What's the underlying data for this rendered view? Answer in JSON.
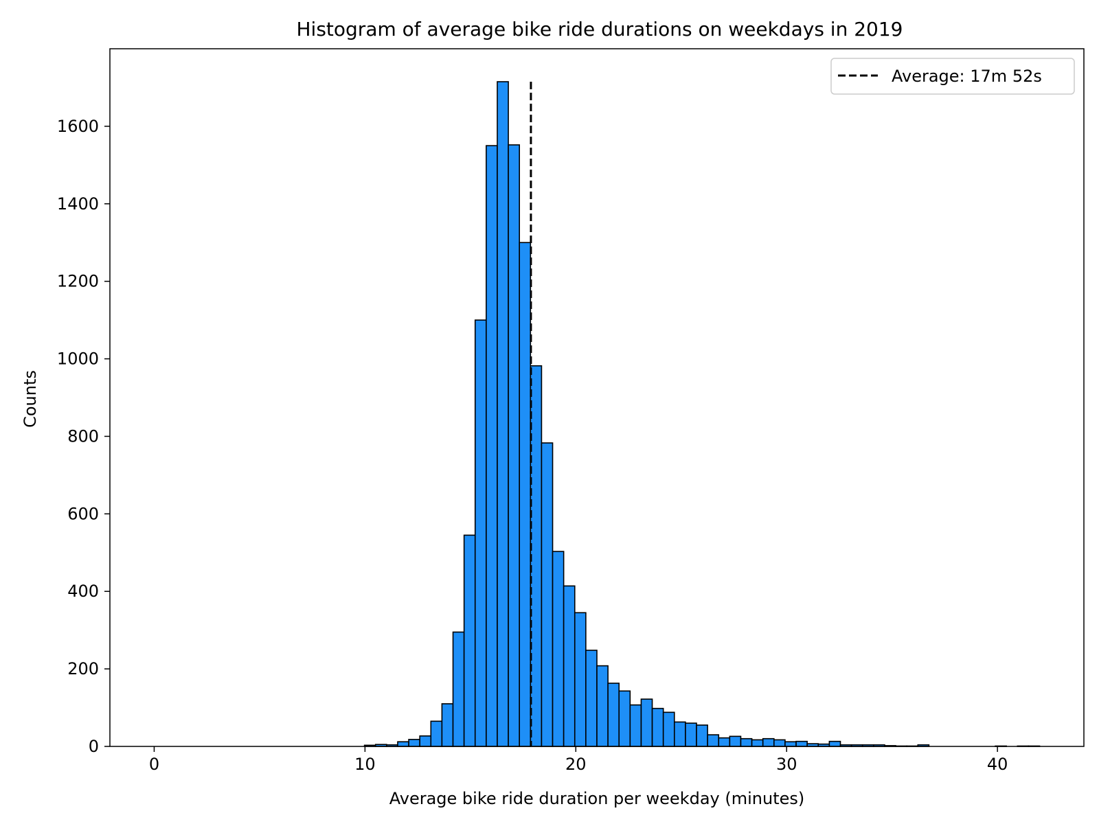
{
  "chart_data": {
    "type": "bar",
    "title": "Histogram of average bike ride durations on weekdays in 2019",
    "xlabel": "Average bike ride duration per weekday (minutes)",
    "ylabel": "Counts",
    "xlim": [
      -2.1,
      44.1
    ],
    "ylim": [
      0,
      1800
    ],
    "xticks": [
      0,
      10,
      20,
      30,
      40
    ],
    "yticks": [
      0,
      200,
      400,
      600,
      800,
      1000,
      1200,
      1400,
      1600
    ],
    "bin_start": 0,
    "bin_width": 0.525,
    "counts": [
      0,
      0,
      0,
      0,
      0,
      0,
      0,
      0,
      0,
      0,
      0,
      0,
      0,
      0,
      0,
      0,
      0,
      0,
      0,
      3,
      5,
      4,
      12,
      18,
      27,
      65,
      110,
      295,
      545,
      1100,
      1550,
      1715,
      1552,
      1300,
      982,
      783,
      503,
      414,
      345,
      248,
      208,
      163,
      143,
      107,
      122,
      98,
      88,
      63,
      60,
      55,
      30,
      22,
      26,
      20,
      17,
      20,
      17,
      12,
      13,
      7,
      6,
      13,
      4,
      4,
      4,
      4,
      2,
      1,
      1,
      4,
      0,
      0,
      0,
      0,
      0,
      0,
      1,
      0,
      1,
      1
    ],
    "bar_color": "#1e8ff7",
    "edge_color": "#000000",
    "reference_line": {
      "x": 17.87,
      "style": "dashed",
      "color": "#000000",
      "label": "Average: 17m 52s"
    },
    "legend": {
      "entries": [
        "Average: 17m 52s"
      ],
      "position": "upper right"
    },
    "grid": false
  }
}
